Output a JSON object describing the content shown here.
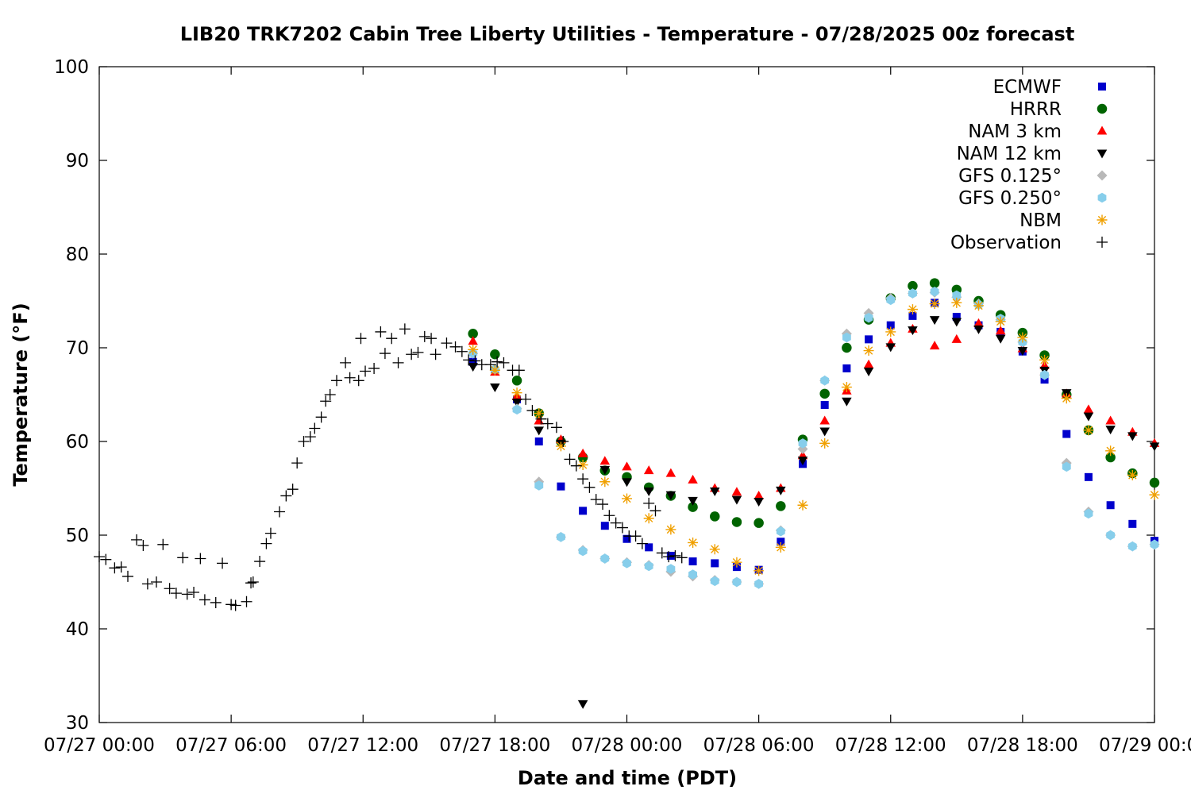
{
  "chart_data": {
    "type": "scatter",
    "title": "LIB20 TRK7202 Cabin Tree Liberty Utilities - Temperature - 07/28/2025 00z forecast",
    "xlabel": "Date and time (PDT)",
    "ylabel": "Temperature (°F)",
    "x_unit": "hours since 07/27 00:00 PDT",
    "xlim": [
      0,
      48
    ],
    "ylim": [
      30,
      100
    ],
    "x_ticks": [
      0,
      6,
      12,
      18,
      24,
      30,
      36,
      42,
      48
    ],
    "x_tick_labels": [
      "07/27 00:00",
      "07/27 06:00",
      "07/27 12:00",
      "07/27 18:00",
      "07/28 00:00",
      "07/28 06:00",
      "07/28 12:00",
      "07/28 18:00",
      "07/29 00:00"
    ],
    "y_ticks": [
      30,
      40,
      50,
      60,
      70,
      80,
      90,
      100
    ],
    "y_tick_labels": [
      "30",
      "40",
      "50",
      "60",
      "70",
      "80",
      "90",
      "100"
    ],
    "grid": false,
    "legend_position": "top-right",
    "series": [
      {
        "name": "ECMWF",
        "marker": "square",
        "color": "#0000cc",
        "x": [
          17,
          18,
          19,
          20,
          21,
          22,
          23,
          24,
          25,
          26,
          27,
          28,
          29,
          30,
          31,
          32,
          33,
          34,
          35,
          36,
          37,
          38,
          39,
          40,
          41,
          42,
          43,
          44,
          45,
          46,
          47,
          48
        ],
        "y": [
          68.5,
          67.5,
          64.5,
          60,
          55.2,
          52.6,
          51,
          49.6,
          48.7,
          47.8,
          47.2,
          47,
          46.6,
          46.3,
          49.3,
          57.6,
          63.9,
          67.8,
          70.9,
          72.4,
          73.4,
          74.8,
          73.3,
          72.4,
          71.7,
          69.6,
          66.6,
          60.8,
          56.2,
          53.2,
          51.2,
          49.4
        ]
      },
      {
        "name": "HRRR",
        "marker": "circle",
        "color": "#006400",
        "x": [
          17,
          18,
          19,
          20,
          21,
          22,
          23,
          24,
          25,
          26,
          27,
          28,
          29,
          30,
          31,
          32,
          33,
          34,
          35,
          36,
          37,
          38,
          39,
          40,
          41,
          42,
          43,
          44,
          45,
          46,
          47,
          48
        ],
        "y": [
          71.5,
          69.3,
          66.5,
          63,
          60,
          58.3,
          56.9,
          56.2,
          55.1,
          54.2,
          53,
          52,
          51.4,
          51.3,
          53.1,
          60.2,
          65.1,
          70,
          73,
          75.3,
          76.6,
          76.9,
          76.2,
          75,
          73.5,
          71.6,
          69.2,
          65,
          61.2,
          58.3,
          56.6,
          55.6
        ]
      },
      {
        "name": "NAM 3 km",
        "marker": "triangle-up",
        "color": "#ff0000",
        "x": [
          17,
          18,
          19,
          20,
          21,
          22,
          23,
          24,
          25,
          26,
          27,
          28,
          29,
          30,
          31,
          32,
          33,
          34,
          35,
          36,
          37,
          38,
          39,
          40,
          41,
          42,
          43,
          44,
          45,
          46,
          47,
          48
        ],
        "y": [
          70.7,
          67.4,
          64.8,
          62.2,
          60.2,
          58.7,
          57.9,
          57.3,
          56.9,
          56.6,
          55.9,
          55,
          54.6,
          54.2,
          55,
          58.5,
          62.2,
          65.4,
          68.2,
          70.5,
          72,
          70.2,
          70.9,
          72.6,
          71.8,
          69.9,
          68.1,
          65.1,
          63.4,
          62.2,
          61,
          59.8
        ]
      },
      {
        "name": "NAM 12 km",
        "marker": "triangle-down",
        "color": "#000000",
        "x": [
          17,
          18,
          19,
          20,
          21,
          22,
          23,
          24,
          25,
          26,
          27,
          28,
          29,
          30,
          31,
          32,
          33,
          34,
          35,
          36,
          37,
          38,
          39,
          40,
          41,
          42,
          43,
          44,
          45,
          46,
          47,
          48
        ],
        "y": [
          68,
          65.8,
          64.2,
          61.2,
          59.8,
          32,
          57,
          55.7,
          54.7,
          54.3,
          53.7,
          54.7,
          53.8,
          53.6,
          54.8,
          58,
          61.1,
          64.3,
          67.5,
          70.1,
          71.9,
          73,
          72.8,
          72,
          71,
          69.7,
          67.6,
          65.2,
          62.7,
          61.3,
          60.6,
          59.5
        ]
      },
      {
        "name": "GFS 0.125°",
        "marker": "diamond",
        "color": "#b8b8b8",
        "x": [
          17,
          18,
          19,
          20,
          21,
          22,
          23,
          24,
          25,
          26,
          27,
          28,
          29,
          30,
          31,
          32,
          33,
          34,
          35,
          36,
          37,
          38,
          39,
          40,
          41,
          42,
          43,
          44,
          45,
          46,
          47,
          48
        ],
        "y": [
          69.4,
          67.7,
          63.5,
          55.7,
          49.8,
          48.4,
          47.5,
          47.1,
          46.8,
          46.1,
          45.6,
          45.2,
          45,
          44.8,
          50.5,
          59.2,
          66.5,
          71.5,
          73.7,
          75.3,
          75.8,
          75.9,
          75.4,
          74.7,
          73,
          70.6,
          67.1,
          57.7,
          52.5,
          50,
          48.8,
          49
        ]
      },
      {
        "name": "GFS 0.250°",
        "marker": "hexagon",
        "color": "#87ceeb",
        "x": [
          17,
          18,
          19,
          20,
          21,
          22,
          23,
          24,
          25,
          26,
          27,
          28,
          29,
          30,
          31,
          32,
          33,
          34,
          35,
          36,
          37,
          38,
          39,
          40,
          41,
          42,
          43,
          44,
          45,
          46,
          47,
          48
        ],
        "y": [
          69.4,
          67.7,
          63.4,
          55.3,
          49.8,
          48.3,
          47.5,
          47,
          46.7,
          46.4,
          45.8,
          45.1,
          45,
          44.8,
          50.4,
          59.8,
          66.5,
          71.1,
          73.2,
          75.1,
          75.8,
          76,
          75.6,
          74.6,
          73.1,
          70.6,
          67.1,
          57.3,
          52.3,
          50,
          48.8,
          49
        ]
      },
      {
        "name": "NBM",
        "marker": "asterisk",
        "color": "#f0a000",
        "x": [
          17,
          18,
          19,
          20,
          21,
          22,
          23,
          24,
          25,
          26,
          27,
          28,
          29,
          30,
          31,
          32,
          33,
          34,
          35,
          36,
          37,
          38,
          39,
          40,
          41,
          42,
          43,
          44,
          45,
          46,
          47,
          48
        ],
        "y": [
          69.8,
          67.6,
          65.2,
          63,
          59.5,
          57.5,
          55.7,
          53.9,
          51.8,
          50.6,
          49.2,
          48.5,
          47.1,
          46.2,
          48.7,
          53.2,
          59.8,
          65.8,
          69.7,
          71.7,
          74.1,
          74.7,
          74.8,
          74.5,
          72.8,
          71.1,
          68.7,
          64.6,
          61.2,
          59,
          56.4,
          54.3
        ]
      },
      {
        "name": "Observation",
        "marker": "plus",
        "color": "#000000",
        "x": [
          0,
          0.3,
          0.7,
          1,
          1.3,
          1.7,
          2,
          2.2,
          2.6,
          2.9,
          3.2,
          3.5,
          3.8,
          4,
          4.3,
          4.6,
          4.8,
          5.3,
          5.6,
          6,
          6.2,
          6.7,
          6.9,
          7,
          7.3,
          7.6,
          7.8,
          8.2,
          8.5,
          8.8,
          9,
          9.3,
          9.6,
          9.8,
          10.1,
          10.3,
          10.5,
          10.8,
          11.2,
          11.4,
          11.8,
          11.9,
          12.1,
          12.5,
          12.8,
          13,
          13.3,
          13.6,
          13.9,
          14.2,
          14.5,
          14.8,
          15.1,
          15.3,
          15.8,
          16.2,
          16.5,
          16.8,
          17.1,
          17.4,
          17.8,
          18.1,
          18.4,
          18.8,
          19.1,
          19.4,
          19.7,
          20.1,
          20.4,
          20.8,
          21.1,
          21.4,
          21.7,
          22,
          22.3,
          22.6,
          22.9,
          23.2,
          23.5,
          23.8,
          24.1,
          24.4,
          24.7,
          25,
          25.3,
          25.6,
          25.9,
          26.2,
          26.5
        ],
        "y": [
          47.7,
          47.4,
          46.5,
          46.6,
          45.6,
          49.5,
          48.9,
          44.8,
          45,
          49,
          44.3,
          43.8,
          47.6,
          43.7,
          43.9,
          47.5,
          43.1,
          42.8,
          47,
          42.6,
          42.5,
          42.9,
          44.9,
          45,
          47.2,
          49.1,
          50.2,
          52.5,
          54.2,
          54.9,
          57.7,
          60,
          60.5,
          61.4,
          62.6,
          64.3,
          65,
          66.5,
          68.4,
          66.8,
          66.5,
          71,
          67.5,
          67.8,
          71.7,
          69.4,
          71,
          68.4,
          72,
          69.3,
          69.5,
          71.2,
          71,
          69.3,
          70.5,
          70.1,
          69.6,
          68.7,
          68.6,
          68.2,
          68.2,
          68.5,
          68.4,
          67.6,
          67.6,
          64.5,
          63.3,
          62.4,
          61.9,
          61.5,
          60,
          58.1,
          57.4,
          56,
          55.1,
          53.8,
          53.3,
          52.1,
          51.3,
          50.8,
          49.9,
          49.9,
          49.1,
          53.4,
          52.6,
          48.1,
          47.7,
          47.8,
          47.6
        ]
      }
    ]
  }
}
